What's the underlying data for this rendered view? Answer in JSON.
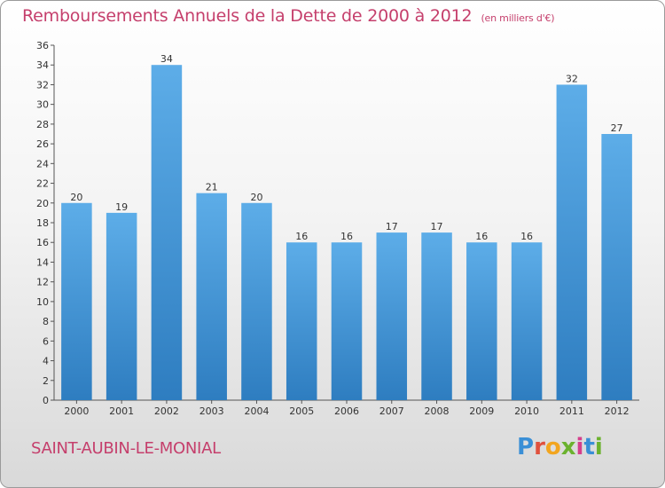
{
  "title": "Remboursements Annuels de la Dette de 2000 à 2012",
  "unit_note": "(en milliers d'€)",
  "commune": "SAINT-AUBIN-LE-MONIAL",
  "logo": {
    "letters": [
      "P",
      "r",
      "o",
      "x",
      "i",
      "t",
      "i"
    ],
    "colors": [
      "#3a8fd6",
      "#e0513d",
      "#f2a51f",
      "#6bb22e",
      "#d53f8c",
      "#3a8fd6",
      "#6bb22e"
    ]
  },
  "colors": {
    "bar_light": "#5dade8",
    "bar_dark": "#2e7dc0",
    "title": "#c53f6c"
  },
  "chart_data": {
    "type": "bar",
    "categories": [
      "2000",
      "2001",
      "2002",
      "2003",
      "2004",
      "2005",
      "2006",
      "2007",
      "2008",
      "2009",
      "2010",
      "2011",
      "2012"
    ],
    "values": [
      20,
      19,
      34,
      21,
      20,
      16,
      16,
      17,
      17,
      16,
      16,
      32,
      27
    ],
    "data_labels": [
      "20",
      "19",
      "34",
      "21",
      "20",
      "16",
      "16",
      "17",
      "17",
      "16",
      "16",
      "32",
      "27"
    ],
    "ylim": [
      0,
      36
    ],
    "yticks": [
      "0",
      "2",
      "4",
      "6",
      "8",
      "10",
      "12",
      "14",
      "16",
      "18",
      "20",
      "22",
      "24",
      "26",
      "28",
      "30",
      "32",
      "34",
      "36"
    ],
    "grid": false
  }
}
